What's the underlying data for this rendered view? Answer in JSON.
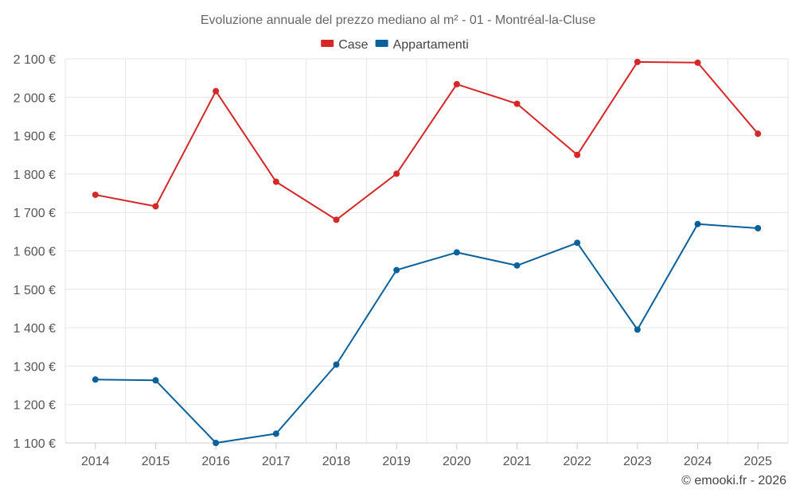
{
  "chart_data": {
    "type": "line",
    "title": "Evoluzione annuale del prezzo mediano al m² - 01 - Montréal-la-Cluse",
    "x": [
      "2014",
      "2015",
      "2016",
      "2017",
      "2018",
      "2019",
      "2020",
      "2021",
      "2022",
      "2023",
      "2024",
      "2025"
    ],
    "ylim": [
      1100,
      2100
    ],
    "yticks": [
      1100,
      1200,
      1300,
      1400,
      1500,
      1600,
      1700,
      1800,
      1900,
      2000,
      2100
    ],
    "ytick_labels": [
      "1 100 €",
      "1 200 €",
      "1 300 €",
      "1 400 €",
      "1 500 €",
      "1 600 €",
      "1 700 €",
      "1 800 €",
      "1 900 €",
      "2 000 €",
      "2 100 €"
    ],
    "grid": true,
    "legend_position": "top-center",
    "series": [
      {
        "name": "Case",
        "color": "#d62728",
        "values": [
          1746,
          1716,
          2016,
          1780,
          1681,
          1801,
          2034,
          1983,
          1850,
          2092,
          2090,
          1905
        ]
      },
      {
        "name": "Appartamenti",
        "color": "#08619a",
        "values": [
          1265,
          1263,
          1100,
          1124,
          1304,
          1550,
          1596,
          1562,
          1621,
          1395,
          1670,
          1659
        ]
      }
    ]
  },
  "credit": "© emooki.fr - 2026"
}
